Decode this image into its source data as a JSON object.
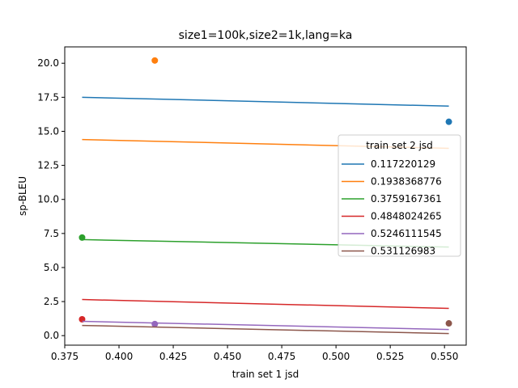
{
  "chart_data": {
    "type": "scatter",
    "title": "size1=100k,size2=1k,lang=ka",
    "xlabel": "train set 1 jsd",
    "ylabel": "sp-BLEU",
    "xlim": [
      0.375,
      0.56
    ],
    "ylim": [
      -0.7,
      21.2
    ],
    "x_ticks": [
      "0.375",
      "0.400",
      "0.425",
      "0.450",
      "0.475",
      "0.500",
      "0.525",
      "0.550"
    ],
    "y_ticks": [
      "0.0",
      "2.5",
      "5.0",
      "7.5",
      "10.0",
      "12.5",
      "15.0",
      "17.5",
      "20.0"
    ],
    "x_tick_values": [
      0.375,
      0.4,
      0.425,
      0.45,
      0.475,
      0.5,
      0.525,
      0.55
    ],
    "y_tick_values": [
      0.0,
      2.5,
      5.0,
      7.5,
      10.0,
      12.5,
      15.0,
      17.5,
      20.0
    ],
    "grid": false,
    "legend": {
      "title": "train set 2 jsd",
      "placement": "center-right"
    },
    "series": [
      {
        "name": "0.117220129",
        "color": "#1f77b4",
        "points": [
          [
            0.552,
            15.7
          ]
        ],
        "fit": [
          [
            0.383,
            17.5
          ],
          [
            0.552,
            16.85
          ]
        ]
      },
      {
        "name": "0.1938368776",
        "color": "#ff7f0e",
        "points": [
          [
            0.4165,
            20.2
          ]
        ],
        "fit": [
          [
            0.383,
            14.4
          ],
          [
            0.552,
            13.75
          ]
        ]
      },
      {
        "name": "0.3759167361",
        "color": "#2ca02c",
        "points": [
          [
            0.383,
            7.2
          ]
        ],
        "fit": [
          [
            0.383,
            7.05
          ],
          [
            0.552,
            6.5
          ]
        ]
      },
      {
        "name": "0.4848024265",
        "color": "#d62728",
        "points": [
          [
            0.383,
            1.2
          ]
        ],
        "fit": [
          [
            0.383,
            2.65
          ],
          [
            0.552,
            2.0
          ]
        ]
      },
      {
        "name": "0.5246111545",
        "color": "#9467bd",
        "points": [
          [
            0.4165,
            0.85
          ]
        ],
        "fit": [
          [
            0.383,
            1.05
          ],
          [
            0.552,
            0.45
          ]
        ]
      },
      {
        "name": "0.531126983",
        "color": "#8c564b",
        "points": [
          [
            0.552,
            0.9
          ]
        ],
        "fit": [
          [
            0.383,
            0.75
          ],
          [
            0.552,
            0.15
          ]
        ]
      }
    ]
  }
}
